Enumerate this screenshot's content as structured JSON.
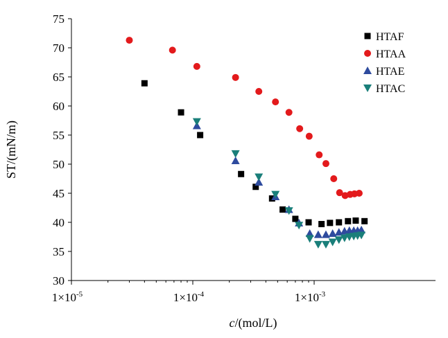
{
  "chart_data": {
    "type": "scatter",
    "xscale": "log",
    "xlim": [
      1e-05,
      0.01
    ],
    "ylim": [
      30,
      75
    ],
    "xlabel_italic": "c",
    "xlabel_rest": "/(mol/L)",
    "ylabel": "ST/(mN/m)",
    "x_ticks": [
      {
        "value": 1e-05,
        "mantissa": "1×10",
        "exp": "-5"
      },
      {
        "value": 0.0001,
        "mantissa": "1×10",
        "exp": "-4"
      },
      {
        "value": 0.001,
        "mantissa": "1×10",
        "exp": "-3"
      }
    ],
    "y_ticks": [
      30,
      35,
      40,
      45,
      50,
      55,
      60,
      65,
      70,
      75
    ],
    "grid": false,
    "legend_position": "top-right",
    "series": [
      {
        "name": "HTAF",
        "marker": "square",
        "color": "#000000",
        "x": [
          4e-05,
          8e-05,
          0.000115,
          0.00025,
          0.00033,
          0.00045,
          0.00055,
          0.0007,
          0.0009,
          0.00115,
          0.00135,
          0.0016,
          0.0019,
          0.0022,
          0.0026
        ],
        "y": [
          63.9,
          58.9,
          55.0,
          48.3,
          46.1,
          44.1,
          42.2,
          40.6,
          40.0,
          39.7,
          39.9,
          40.0,
          40.2,
          40.3,
          40.2
        ]
      },
      {
        "name": "HTAA",
        "marker": "circle",
        "color": "#e31a1c",
        "x": [
          3e-05,
          6.8e-05,
          0.000108,
          0.000225,
          0.00035,
          0.00048,
          0.00062,
          0.00076,
          0.00091,
          0.0011,
          0.00125,
          0.00145,
          0.00162,
          0.0018,
          0.00198,
          0.00215,
          0.00235
        ],
        "y": [
          71.3,
          69.6,
          66.8,
          64.9,
          62.5,
          60.7,
          58.9,
          56.1,
          54.8,
          51.6,
          50.1,
          47.5,
          45.1,
          44.6,
          44.8,
          44.9,
          45.0
        ]
      },
      {
        "name": "HTAE",
        "marker": "triangle-up",
        "color": "#2e4b9e",
        "x": [
          0.000108,
          0.000225,
          0.00035,
          0.00048,
          0.00062,
          0.00075,
          0.00092,
          0.00108,
          0.00125,
          0.00142,
          0.0016,
          0.00178,
          0.00195,
          0.00212,
          0.00228,
          0.00245
        ],
        "y": [
          56.6,
          50.6,
          46.9,
          44.4,
          42.2,
          39.9,
          38.1,
          37.9,
          37.9,
          38.1,
          38.3,
          38.5,
          38.6,
          38.6,
          38.6,
          38.7
        ]
      },
      {
        "name": "HTAC",
        "marker": "triangle-down",
        "color": "#1a7f7a",
        "x": [
          0.000108,
          0.000225,
          0.00035,
          0.00048,
          0.00062,
          0.00075,
          0.00092,
          0.00108,
          0.00125,
          0.00142,
          0.0016,
          0.00178,
          0.00195,
          0.00212,
          0.00228,
          0.00245
        ],
        "y": [
          57.3,
          51.8,
          47.8,
          44.8,
          42.0,
          39.5,
          37.2,
          36.2,
          36.2,
          36.6,
          37.0,
          37.3,
          37.5,
          37.6,
          37.7,
          37.8
        ]
      }
    ]
  }
}
